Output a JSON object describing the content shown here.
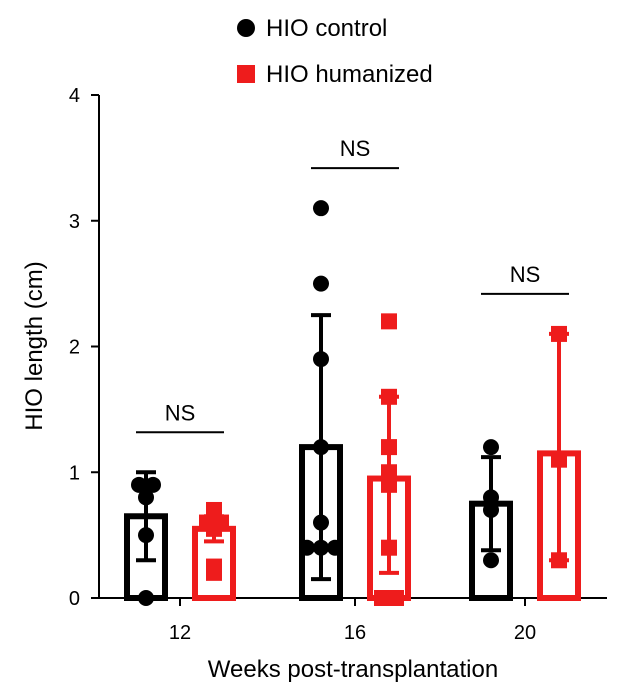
{
  "chart_data": {
    "type": "bar",
    "xlabel": "Weeks post-transplantation",
    "ylabel": "HIO length (cm)",
    "ylim": [
      0,
      4
    ],
    "yticks": [
      "0",
      "1",
      "2",
      "3",
      "4"
    ],
    "categories": [
      "12",
      "16",
      "20"
    ],
    "legend_position": "top",
    "series": [
      {
        "name": "HIO control",
        "color": "#000000",
        "marker": "circle",
        "means": [
          0.65,
          1.2,
          0.75
        ],
        "error_low": [
          0.3,
          0.15,
          0.38
        ],
        "error_high": [
          1.0,
          2.25,
          1.12
        ],
        "points": [
          [
            0.0,
            0.5,
            0.8,
            0.9,
            0.9
          ],
          [
            0.4,
            0.4,
            0.4,
            0.6,
            1.2,
            1.9,
            2.5,
            3.1
          ],
          [
            0.3,
            0.7,
            0.8,
            1.2
          ]
        ]
      },
      {
        "name": "HIO humanized",
        "color": "#ee1c1c",
        "marker": "square",
        "means": [
          0.55,
          0.95,
          1.15
        ],
        "error_low": [
          0.45,
          0.2,
          0.3
        ],
        "error_high": [
          0.65,
          1.6,
          2.1
        ],
        "points": [
          [
            0.2,
            0.25,
            0.55,
            0.6,
            0.6,
            0.7
          ],
          [
            0.0,
            0.0,
            0.4,
            0.9,
            1.0,
            1.2,
            1.6,
            2.2
          ],
          [
            0.3,
            1.1,
            2.1
          ]
        ]
      }
    ],
    "annotations": [
      {
        "group": "12",
        "text": "NS"
      },
      {
        "group": "16",
        "text": "NS"
      },
      {
        "group": "20",
        "text": "NS"
      }
    ]
  }
}
